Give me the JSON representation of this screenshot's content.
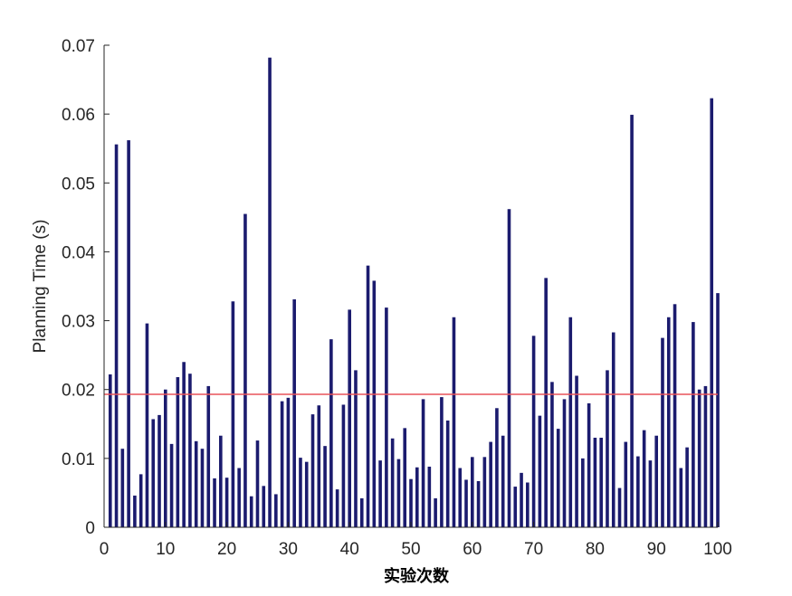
{
  "chart_data": {
    "type": "bar",
    "title": "",
    "xlabel": "实验次数",
    "ylabel": "Planning Time (s)",
    "xlim": [
      0,
      100
    ],
    "ylim": [
      0,
      0.07
    ],
    "xticks": [
      0,
      10,
      20,
      30,
      40,
      50,
      60,
      70,
      80,
      90,
      100
    ],
    "yticks": [
      0,
      0.01,
      0.02,
      0.03,
      0.04,
      0.05,
      0.06,
      0.07
    ],
    "xtick_labels": [
      "0",
      "10",
      "20",
      "30",
      "40",
      "50",
      "60",
      "70",
      "80",
      "90",
      "100"
    ],
    "ytick_labels": [
      "0",
      "0.01",
      "0.02",
      "0.03",
      "0.04",
      "0.05",
      "0.06",
      "0.07"
    ],
    "grid": false,
    "bar_color": "#1b1b6e",
    "reference_line": {
      "value": 0.0193,
      "color": "#e8535a"
    },
    "x": [
      1,
      2,
      3,
      4,
      5,
      6,
      7,
      8,
      9,
      10,
      11,
      12,
      13,
      14,
      15,
      16,
      17,
      18,
      19,
      20,
      21,
      22,
      23,
      24,
      25,
      26,
      27,
      28,
      29,
      30,
      31,
      32,
      33,
      34,
      35,
      36,
      37,
      38,
      39,
      40,
      41,
      42,
      43,
      44,
      45,
      46,
      47,
      48,
      49,
      50,
      51,
      52,
      53,
      54,
      55,
      56,
      57,
      58,
      59,
      60,
      61,
      62,
      63,
      64,
      65,
      66,
      67,
      68,
      69,
      70,
      71,
      72,
      73,
      74,
      75,
      76,
      77,
      78,
      79,
      80,
      81,
      82,
      83,
      84,
      85,
      86,
      87,
      88,
      89,
      90,
      91,
      92,
      93,
      94,
      95,
      96,
      97,
      98,
      99,
      100
    ],
    "values": [
      0.0222,
      0.0556,
      0.0114,
      0.0562,
      0.0046,
      0.0077,
      0.0296,
      0.0157,
      0.0163,
      0.02,
      0.0121,
      0.0218,
      0.024,
      0.0223,
      0.0125,
      0.0114,
      0.0205,
      0.0071,
      0.0133,
      0.0072,
      0.0328,
      0.0086,
      0.0455,
      0.0045,
      0.0126,
      0.006,
      0.0682,
      0.0048,
      0.0183,
      0.0188,
      0.0331,
      0.0101,
      0.0095,
      0.0164,
      0.0177,
      0.0118,
      0.0273,
      0.0055,
      0.0178,
      0.0316,
      0.0228,
      0.0042,
      0.038,
      0.0358,
      0.0097,
      0.0319,
      0.0129,
      0.0099,
      0.0144,
      0.007,
      0.0087,
      0.0186,
      0.0088,
      0.0042,
      0.0189,
      0.0155,
      0.0305,
      0.0086,
      0.0069,
      0.0102,
      0.0067,
      0.0102,
      0.0124,
      0.0173,
      0.0133,
      0.0462,
      0.0059,
      0.0079,
      0.0065,
      0.0278,
      0.0162,
      0.0362,
      0.0211,
      0.0143,
      0.0186,
      0.0305,
      0.022,
      0.01,
      0.018,
      0.013,
      0.013,
      0.0228,
      0.0283,
      0.0057,
      0.0124,
      0.0599,
      0.0103,
      0.0141,
      0.0097,
      0.0133,
      0.0275,
      0.0305,
      0.0324,
      0.0086,
      0.0116,
      0.0298,
      0.02,
      0.0205,
      0.0623,
      0.034
    ]
  }
}
